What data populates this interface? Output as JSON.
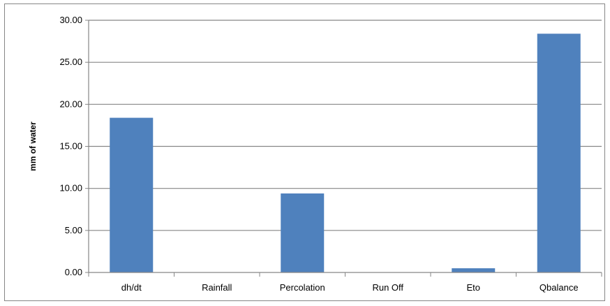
{
  "chart_data": {
    "type": "bar",
    "title": "",
    "xlabel": "",
    "ylabel": "mm of water",
    "categories": [
      "dh/dt",
      "Rainfall",
      "Percolation",
      "Run Off",
      "Eto",
      "Qbalance"
    ],
    "values": [
      18.4,
      0.0,
      9.4,
      0.0,
      0.5,
      28.4
    ],
    "ylim": [
      0,
      30
    ],
    "yticks": [
      "0.00",
      "5.00",
      "10.00",
      "15.00",
      "20.00",
      "25.00",
      "30.00"
    ],
    "grid": true,
    "legend": "none",
    "bar_color": "#4f81bd",
    "grid_color": "#868686"
  }
}
